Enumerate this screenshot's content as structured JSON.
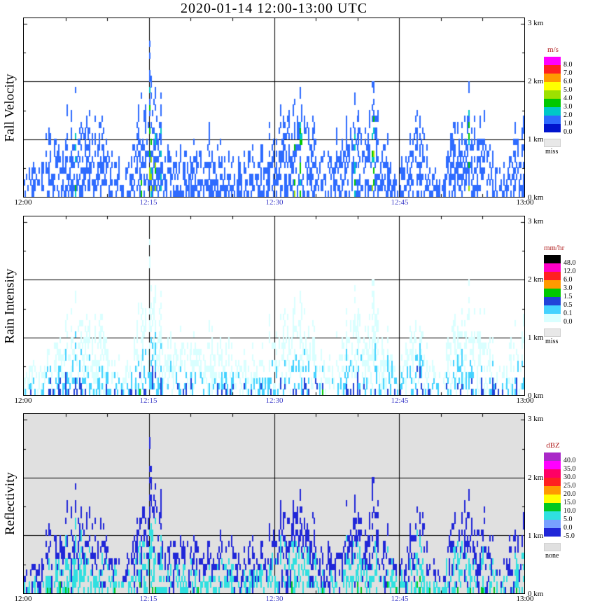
{
  "chart_data": {
    "type": "heatmap",
    "title": "2020-01-14  12:00-13:00 UTC",
    "x": {
      "tick_labels": [
        "12:00",
        "12:15",
        "12:30",
        "12:45",
        "13:00"
      ],
      "tick_minutes": [
        0,
        15,
        30,
        45,
        60
      ],
      "tick_colors": [
        "#000000",
        "#3a3ac8",
        "#3a3ac8",
        "#3a3ac8",
        "#000000"
      ],
      "grid_minutes": [
        15,
        30,
        45
      ]
    },
    "y": {
      "unit": "km",
      "min": 0,
      "max": 3.1,
      "tick_labels": [
        "3 km",
        "2 km",
        "1 km",
        "0 km"
      ],
      "tick_values": [
        3,
        2,
        1,
        0
      ],
      "grid_values": [
        1,
        2
      ]
    },
    "colors": {
      "grid": "#000000",
      "frame": "#000000",
      "unit_label": "#b22222"
    },
    "panels": [
      {
        "name": "Fall Velocity",
        "unit": "m/s",
        "background": "#ffffff",
        "colorbar": {
          "cells": [
            {
              "label": "8.0",
              "color": "#ff00ff"
            },
            {
              "label": "7.0",
              "color": "#ff2020"
            },
            {
              "label": "6.0",
              "color": "#ff9a00"
            },
            {
              "label": "5.0",
              "color": "#ffff00"
            },
            {
              "label": "4.0",
              "color": "#9ee000"
            },
            {
              "label": "3.0",
              "color": "#00c800"
            },
            {
              "label": "2.0",
              "color": "#00c8c8"
            },
            {
              "label": "1.0",
              "color": "#2e6bff"
            },
            {
              "label": "0.0",
              "color": "#0014cd"
            }
          ],
          "missing": {
            "label": "miss",
            "color": "#e8e8e8"
          }
        }
      },
      {
        "name": "Rain Intensity",
        "unit": "mm/hr",
        "background": "#ffffff",
        "colorbar": {
          "cells": [
            {
              "label": "48.0",
              "color": "#000000"
            },
            {
              "label": "12.0",
              "color": "#ff00c8"
            },
            {
              "label": "6.0",
              "color": "#ff2020"
            },
            {
              "label": "3.0",
              "color": "#ff9a00"
            },
            {
              "label": "1.5",
              "color": "#00c800"
            },
            {
              "label": "0.5",
              "color": "#2142d8"
            },
            {
              "label": "0.1",
              "color": "#44d2ff"
            },
            {
              "label": "0.0",
              "color": "#d9ffff"
            }
          ],
          "missing": {
            "label": "miss",
            "color": "#e8e8e8"
          }
        }
      },
      {
        "name": "Reflectivity",
        "unit": "dBZ",
        "background": "#e0e0e0",
        "colorbar": {
          "cells": [
            {
              "label": "40.0",
              "color": "#aa28c8"
            },
            {
              "label": "35.0",
              "color": "#ff00ff"
            },
            {
              "label": "30.0",
              "color": "#ff0064"
            },
            {
              "label": "25.0",
              "color": "#ff2020"
            },
            {
              "label": "20.0",
              "color": "#ff9a00"
            },
            {
              "label": "15.0",
              "color": "#ffff00"
            },
            {
              "label": "10.0",
              "color": "#00c820"
            },
            {
              "label": "5.0",
              "color": "#30e0e0"
            },
            {
              "label": "0.0",
              "color": "#78a0ff"
            },
            {
              "label": "-5.0",
              "color": "#2026d8"
            }
          ],
          "missing": {
            "label": "none",
            "color": "#e0e0e0"
          }
        }
      }
    ],
    "echo_top_km_per_min": [
      0.4,
      0.5,
      0.7,
      1.0,
      1.1,
      1.2,
      1.5,
      1.6,
      1.5,
      1.2,
      0.9,
      0.7,
      0.45,
      0.9,
      1.9,
      2.1,
      1.6,
      1.0,
      0.9,
      1.0,
      1.0,
      0.9,
      1.0,
      0.9,
      0.9,
      0.8,
      0.6,
      0.7,
      0.9,
      1.1,
      1.3,
      1.5,
      1.7,
      1.8,
      1.4,
      1.0,
      0.8,
      0.7,
      1.1,
      1.4,
      1.6,
      1.7,
      1.5,
      1.1,
      0.8,
      0.25,
      1.2,
      1.4,
      1.3,
      0.7,
      0.28,
      1.0,
      1.4,
      1.6,
      1.6,
      1.3,
      0.9,
      0.6,
      0.8,
      1.1
    ]
  }
}
